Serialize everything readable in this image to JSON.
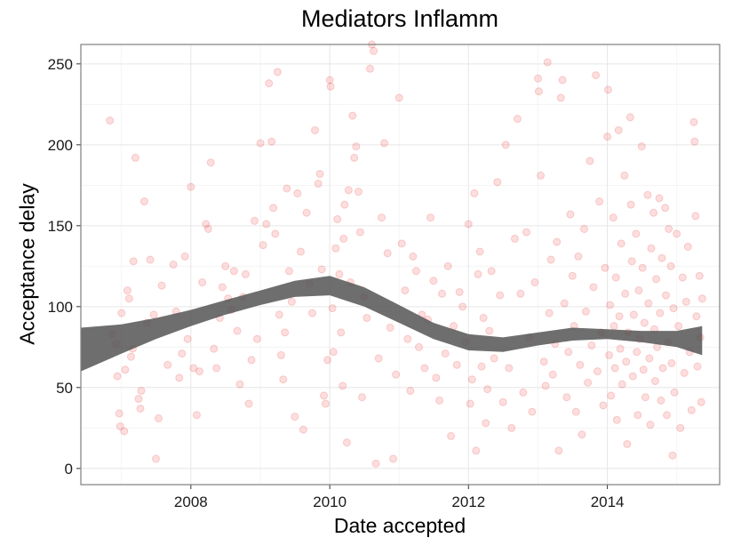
{
  "chart_data": {
    "type": "scatter",
    "title": "Mediators Inflamm",
    "xlabel": "Date accepted",
    "ylabel": "Acceptance delay",
    "xlim": [
      "2006-06-01",
      "2015-08-15"
    ],
    "ylim": [
      -10,
      262
    ],
    "x_ticks": [
      "2008",
      "2010",
      "2012",
      "2014"
    ],
    "y_ticks": [
      0,
      50,
      100,
      150,
      200,
      250
    ],
    "grid": true,
    "point_color": "#ee2222",
    "point_opacity": 0.15,
    "smooth_band_color": "#555555",
    "smooth": [
      {
        "x": "2006-06-01",
        "lo": 60,
        "hi": 87
      },
      {
        "x": "2007-01-01",
        "lo": 71,
        "hi": 89
      },
      {
        "x": "2007-07-01",
        "lo": 80,
        "hi": 93
      },
      {
        "x": "2008-01-01",
        "lo": 88,
        "hi": 98
      },
      {
        "x": "2008-07-01",
        "lo": 95,
        "hi": 104
      },
      {
        "x": "2009-01-01",
        "lo": 101,
        "hi": 110
      },
      {
        "x": "2009-07-01",
        "lo": 106,
        "hi": 116
      },
      {
        "x": "2010-01-01",
        "lo": 107,
        "hi": 119
      },
      {
        "x": "2010-07-01",
        "lo": 100,
        "hi": 112
      },
      {
        "x": "2011-01-01",
        "lo": 90,
        "hi": 101
      },
      {
        "x": "2011-07-01",
        "lo": 80,
        "hi": 90
      },
      {
        "x": "2012-01-01",
        "lo": 73,
        "hi": 83
      },
      {
        "x": "2012-07-01",
        "lo": 72,
        "hi": 81
      },
      {
        "x": "2013-01-01",
        "lo": 76,
        "hi": 84
      },
      {
        "x": "2013-07-01",
        "lo": 79,
        "hi": 87
      },
      {
        "x": "2014-01-01",
        "lo": 80,
        "hi": 86
      },
      {
        "x": "2014-07-01",
        "lo": 78,
        "hi": 85
      },
      {
        "x": "2015-01-01",
        "lo": 75,
        "hi": 85
      },
      {
        "x": "2015-05-15",
        "lo": 70,
        "hi": 88
      }
    ],
    "points": [
      {
        "x": "2006-11-01",
        "y": 215
      },
      {
        "x": "2006-11-15",
        "y": 83
      },
      {
        "x": "2006-12-01",
        "y": 77
      },
      {
        "x": "2006-12-10",
        "y": 57
      },
      {
        "x": "2007-01-01",
        "y": 96
      },
      {
        "x": "2006-12-20",
        "y": 34
      },
      {
        "x": "2006-12-25",
        "y": 26
      },
      {
        "x": "2007-01-15",
        "y": 23
      },
      {
        "x": "2007-01-20",
        "y": 61
      },
      {
        "x": "2007-02-01",
        "y": 110
      },
      {
        "x": "2007-02-10",
        "y": 105
      },
      {
        "x": "2007-02-20",
        "y": 69
      },
      {
        "x": "2007-03-01",
        "y": 74
      },
      {
        "x": "2007-03-05",
        "y": 128
      },
      {
        "x": "2007-03-15",
        "y": 192
      },
      {
        "x": "2007-04-01",
        "y": 43
      },
      {
        "x": "2007-04-10",
        "y": 37
      },
      {
        "x": "2007-04-15",
        "y": 48
      },
      {
        "x": "2007-05-01",
        "y": 165
      },
      {
        "x": "2007-05-15",
        "y": 90
      },
      {
        "x": "2007-06-01",
        "y": 129
      },
      {
        "x": "2007-06-20",
        "y": 95
      },
      {
        "x": "2007-07-01",
        "y": 6
      },
      {
        "x": "2007-07-15",
        "y": 31
      },
      {
        "x": "2007-08-01",
        "y": 113
      },
      {
        "x": "2007-09-01",
        "y": 64
      },
      {
        "x": "2007-10-01",
        "y": 126
      },
      {
        "x": "2007-10-15",
        "y": 97
      },
      {
        "x": "2007-11-01",
        "y": 56
      },
      {
        "x": "2007-11-15",
        "y": 71
      },
      {
        "x": "2007-12-01",
        "y": 131
      },
      {
        "x": "2007-12-15",
        "y": 80
      },
      {
        "x": "2008-01-01",
        "y": 174
      },
      {
        "x": "2008-01-15",
        "y": 62
      },
      {
        "x": "2008-02-01",
        "y": 33
      },
      {
        "x": "2008-02-15",
        "y": 60
      },
      {
        "x": "2008-03-01",
        "y": 115
      },
      {
        "x": "2008-03-20",
        "y": 151
      },
      {
        "x": "2008-04-01",
        "y": 148
      },
      {
        "x": "2008-04-15",
        "y": 189
      },
      {
        "x": "2008-05-01",
        "y": 74
      },
      {
        "x": "2008-05-15",
        "y": 62
      },
      {
        "x": "2008-06-01",
        "y": 93
      },
      {
        "x": "2008-06-15",
        "y": 112
      },
      {
        "x": "2008-07-01",
        "y": 125
      },
      {
        "x": "2008-07-15",
        "y": 105
      },
      {
        "x": "2008-08-01",
        "y": 98
      },
      {
        "x": "2008-08-15",
        "y": 122
      },
      {
        "x": "2008-09-01",
        "y": 85
      },
      {
        "x": "2008-09-15",
        "y": 52
      },
      {
        "x": "2008-10-01",
        "y": 106
      },
      {
        "x": "2008-10-15",
        "y": 120
      },
      {
        "x": "2008-11-01",
        "y": 40
      },
      {
        "x": "2008-11-15",
        "y": 67
      },
      {
        "x": "2008-12-01",
        "y": 153
      },
      {
        "x": "2008-12-15",
        "y": 80
      },
      {
        "x": "2009-01-01",
        "y": 201
      },
      {
        "x": "2009-01-15",
        "y": 138
      },
      {
        "x": "2009-02-01",
        "y": 151
      },
      {
        "x": "2009-02-15",
        "y": 238
      },
      {
        "x": "2009-03-01",
        "y": 202
      },
      {
        "x": "2009-03-10",
        "y": 161
      },
      {
        "x": "2009-03-20",
        "y": 145
      },
      {
        "x": "2009-04-01",
        "y": 245
      },
      {
        "x": "2009-04-10",
        "y": 95
      },
      {
        "x": "2009-04-20",
        "y": 70
      },
      {
        "x": "2009-05-01",
        "y": 55
      },
      {
        "x": "2009-05-10",
        "y": 84
      },
      {
        "x": "2009-05-20",
        "y": 173
      },
      {
        "x": "2009-06-01",
        "y": 122
      },
      {
        "x": "2009-06-15",
        "y": 103
      },
      {
        "x": "2009-07-01",
        "y": 32
      },
      {
        "x": "2009-07-15",
        "y": 170
      },
      {
        "x": "2009-08-01",
        "y": 134
      },
      {
        "x": "2009-08-15",
        "y": 24
      },
      {
        "x": "2009-09-01",
        "y": 158
      },
      {
        "x": "2009-09-15",
        "y": 114
      },
      {
        "x": "2009-10-01",
        "y": 96
      },
      {
        "x": "2009-10-15",
        "y": 209
      },
      {
        "x": "2009-11-01",
        "y": 176
      },
      {
        "x": "2009-11-10",
        "y": 182
      },
      {
        "x": "2009-11-20",
        "y": 123
      },
      {
        "x": "2009-12-01",
        "y": 45
      },
      {
        "x": "2009-12-10",
        "y": 40
      },
      {
        "x": "2009-12-20",
        "y": 67
      },
      {
        "x": "2010-01-01",
        "y": 240
      },
      {
        "x": "2010-01-05",
        "y": 236
      },
      {
        "x": "2010-01-15",
        "y": 99
      },
      {
        "x": "2010-01-20",
        "y": 72
      },
      {
        "x": "2010-02-01",
        "y": 136
      },
      {
        "x": "2010-02-10",
        "y": 154
      },
      {
        "x": "2010-02-20",
        "y": 120
      },
      {
        "x": "2010-03-01",
        "y": 84
      },
      {
        "x": "2010-03-10",
        "y": 51
      },
      {
        "x": "2010-03-15",
        "y": 142
      },
      {
        "x": "2010-03-20",
        "y": 163
      },
      {
        "x": "2010-04-01",
        "y": 16
      },
      {
        "x": "2010-04-10",
        "y": 172
      },
      {
        "x": "2010-04-20",
        "y": 115
      },
      {
        "x": "2010-05-01",
        "y": 218
      },
      {
        "x": "2010-05-10",
        "y": 192
      },
      {
        "x": "2010-05-20",
        "y": 199
      },
      {
        "x": "2010-06-01",
        "y": 171
      },
      {
        "x": "2010-06-10",
        "y": 146
      },
      {
        "x": "2010-06-20",
        "y": 44
      },
      {
        "x": "2010-07-01",
        "y": 106
      },
      {
        "x": "2010-07-15",
        "y": 93
      },
      {
        "x": "2010-08-01",
        "y": 247
      },
      {
        "x": "2010-08-10",
        "y": 262
      },
      {
        "x": "2010-08-20",
        "y": 258
      },
      {
        "x": "2010-09-01",
        "y": 3
      },
      {
        "x": "2010-09-15",
        "y": 68
      },
      {
        "x": "2010-10-01",
        "y": 155
      },
      {
        "x": "2010-10-15",
        "y": 201
      },
      {
        "x": "2010-11-01",
        "y": 133
      },
      {
        "x": "2010-11-15",
        "y": 87
      },
      {
        "x": "2010-12-01",
        "y": 6
      },
      {
        "x": "2010-12-15",
        "y": 58
      },
      {
        "x": "2011-01-01",
        "y": 229
      },
      {
        "x": "2011-01-15",
        "y": 139
      },
      {
        "x": "2011-02-01",
        "y": 110
      },
      {
        "x": "2011-02-15",
        "y": 80
      },
      {
        "x": "2011-03-01",
        "y": 48
      },
      {
        "x": "2011-03-15",
        "y": 131
      },
      {
        "x": "2011-04-01",
        "y": 122
      },
      {
        "x": "2011-04-15",
        "y": 75
      },
      {
        "x": "2011-05-01",
        "y": 95
      },
      {
        "x": "2011-05-15",
        "y": 62
      },
      {
        "x": "2011-06-01",
        "y": 92
      },
      {
        "x": "2011-06-15",
        "y": 155
      },
      {
        "x": "2011-07-01",
        "y": 116
      },
      {
        "x": "2011-07-15",
        "y": 56
      },
      {
        "x": "2011-08-01",
        "y": 42
      },
      {
        "x": "2011-08-15",
        "y": 108
      },
      {
        "x": "2011-09-01",
        "y": 71
      },
      {
        "x": "2011-09-15",
        "y": 125
      },
      {
        "x": "2011-10-01",
        "y": 20
      },
      {
        "x": "2011-10-15",
        "y": 88
      },
      {
        "x": "2011-11-01",
        "y": 64
      },
      {
        "x": "2011-11-15",
        "y": 109
      },
      {
        "x": "2011-12-01",
        "y": 100
      },
      {
        "x": "2011-12-15",
        "y": 78
      },
      {
        "x": "2012-01-01",
        "y": 151
      },
      {
        "x": "2012-01-10",
        "y": 40
      },
      {
        "x": "2012-01-20",
        "y": 55
      },
      {
        "x": "2012-02-01",
        "y": 170
      },
      {
        "x": "2012-02-10",
        "y": 11
      },
      {
        "x": "2012-02-20",
        "y": 120
      },
      {
        "x": "2012-03-01",
        "y": 134
      },
      {
        "x": "2012-03-10",
        "y": 63
      },
      {
        "x": "2012-03-20",
        "y": 93
      },
      {
        "x": "2012-04-01",
        "y": 28
      },
      {
        "x": "2012-04-10",
        "y": 49
      },
      {
        "x": "2012-04-20",
        "y": 85
      },
      {
        "x": "2012-05-01",
        "y": 122
      },
      {
        "x": "2012-05-15",
        "y": 68
      },
      {
        "x": "2012-06-01",
        "y": 177
      },
      {
        "x": "2012-06-15",
        "y": 107
      },
      {
        "x": "2012-07-01",
        "y": 41
      },
      {
        "x": "2012-07-15",
        "y": 200
      },
      {
        "x": "2012-08-01",
        "y": 62
      },
      {
        "x": "2012-08-15",
        "y": 25
      },
      {
        "x": "2012-09-01",
        "y": 142
      },
      {
        "x": "2012-09-15",
        "y": 216
      },
      {
        "x": "2012-10-01",
        "y": 108
      },
      {
        "x": "2012-10-15",
        "y": 47
      },
      {
        "x": "2012-11-01",
        "y": 146
      },
      {
        "x": "2012-11-15",
        "y": 81
      },
      {
        "x": "2012-12-01",
        "y": 35
      },
      {
        "x": "2012-12-15",
        "y": 115
      },
      {
        "x": "2013-01-01",
        "y": 241
      },
      {
        "x": "2013-01-05",
        "y": 233
      },
      {
        "x": "2013-01-15",
        "y": 181
      },
      {
        "x": "2013-02-01",
        "y": 66
      },
      {
        "x": "2013-02-10",
        "y": 51
      },
      {
        "x": "2013-02-20",
        "y": 251
      },
      {
        "x": "2013-03-01",
        "y": 96
      },
      {
        "x": "2013-03-10",
        "y": 129
      },
      {
        "x": "2013-03-20",
        "y": 58
      },
      {
        "x": "2013-04-01",
        "y": 77
      },
      {
        "x": "2013-04-10",
        "y": 140
      },
      {
        "x": "2013-04-20",
        "y": 11
      },
      {
        "x": "2013-05-01",
        "y": 229
      },
      {
        "x": "2013-05-10",
        "y": 240
      },
      {
        "x": "2013-05-20",
        "y": 102
      },
      {
        "x": "2013-06-01",
        "y": 44
      },
      {
        "x": "2013-06-10",
        "y": 72
      },
      {
        "x": "2013-06-20",
        "y": 157
      },
      {
        "x": "2013-07-01",
        "y": 119
      },
      {
        "x": "2013-07-10",
        "y": 88
      },
      {
        "x": "2013-07-20",
        "y": 35
      },
      {
        "x": "2013-08-01",
        "y": 131
      },
      {
        "x": "2013-08-10",
        "y": 64
      },
      {
        "x": "2013-08-20",
        "y": 21
      },
      {
        "x": "2013-09-01",
        "y": 148
      },
      {
        "x": "2013-09-10",
        "y": 97
      },
      {
        "x": "2013-09-20",
        "y": 53
      },
      {
        "x": "2013-10-01",
        "y": 190
      },
      {
        "x": "2013-10-10",
        "y": 76
      },
      {
        "x": "2013-10-20",
        "y": 112
      },
      {
        "x": "2013-11-01",
        "y": 243
      },
      {
        "x": "2013-11-10",
        "y": 60
      },
      {
        "x": "2013-11-20",
        "y": 165
      },
      {
        "x": "2013-12-01",
        "y": 84
      },
      {
        "x": "2013-12-10",
        "y": 39
      },
      {
        "x": "2013-12-20",
        "y": 124
      },
      {
        "x": "2014-01-01",
        "y": 205
      },
      {
        "x": "2014-01-05",
        "y": 234
      },
      {
        "x": "2014-01-10",
        "y": 70
      },
      {
        "x": "2014-01-15",
        "y": 101
      },
      {
        "x": "2014-01-20",
        "y": 45
      },
      {
        "x": "2014-02-01",
        "y": 155
      },
      {
        "x": "2014-02-05",
        "y": 88
      },
      {
        "x": "2014-02-10",
        "y": 62
      },
      {
        "x": "2014-02-15",
        "y": 118
      },
      {
        "x": "2014-02-20",
        "y": 30
      },
      {
        "x": "2014-03-01",
        "y": 209
      },
      {
        "x": "2014-03-05",
        "y": 94
      },
      {
        "x": "2014-03-10",
        "y": 74
      },
      {
        "x": "2014-03-15",
        "y": 139
      },
      {
        "x": "2014-03-20",
        "y": 52
      },
      {
        "x": "2014-04-01",
        "y": 181
      },
      {
        "x": "2014-04-05",
        "y": 108
      },
      {
        "x": "2014-04-10",
        "y": 66
      },
      {
        "x": "2014-04-15",
        "y": 15
      },
      {
        "x": "2014-04-20",
        "y": 84
      },
      {
        "x": "2014-05-01",
        "y": 217
      },
      {
        "x": "2014-05-05",
        "y": 163
      },
      {
        "x": "2014-05-10",
        "y": 128
      },
      {
        "x": "2014-05-15",
        "y": 57
      },
      {
        "x": "2014-05-20",
        "y": 95
      },
      {
        "x": "2014-06-01",
        "y": 145
      },
      {
        "x": "2014-06-05",
        "y": 72
      },
      {
        "x": "2014-06-10",
        "y": 33
      },
      {
        "x": "2014-06-15",
        "y": 110
      },
      {
        "x": "2014-06-20",
        "y": 80
      },
      {
        "x": "2014-07-01",
        "y": 199
      },
      {
        "x": "2014-07-05",
        "y": 124
      },
      {
        "x": "2014-07-10",
        "y": 61
      },
      {
        "x": "2014-07-15",
        "y": 90
      },
      {
        "x": "2014-07-20",
        "y": 44
      },
      {
        "x": "2014-08-01",
        "y": 169
      },
      {
        "x": "2014-08-05",
        "y": 102
      },
      {
        "x": "2014-08-10",
        "y": 68
      },
      {
        "x": "2014-08-15",
        "y": 27
      },
      {
        "x": "2014-08-20",
        "y": 136
      },
      {
        "x": "2014-09-01",
        "y": 158
      },
      {
        "x": "2014-09-05",
        "y": 86
      },
      {
        "x": "2014-09-10",
        "y": 54
      },
      {
        "x": "2014-09-15",
        "y": 117
      },
      {
        "x": "2014-09-20",
        "y": 75
      },
      {
        "x": "2014-10-01",
        "y": 167
      },
      {
        "x": "2014-10-05",
        "y": 96
      },
      {
        "x": "2014-10-10",
        "y": 42
      },
      {
        "x": "2014-10-15",
        "y": 130
      },
      {
        "x": "2014-10-20",
        "y": 62
      },
      {
        "x": "2014-11-01",
        "y": 161
      },
      {
        "x": "2014-11-05",
        "y": 107
      },
      {
        "x": "2014-11-10",
        "y": 33
      },
      {
        "x": "2014-11-15",
        "y": 78
      },
      {
        "x": "2014-11-20",
        "y": 148
      },
      {
        "x": "2014-12-01",
        "y": 125
      },
      {
        "x": "2014-12-05",
        "y": 65
      },
      {
        "x": "2014-12-10",
        "y": 8
      },
      {
        "x": "2014-12-15",
        "y": 99
      },
      {
        "x": "2014-12-20",
        "y": 47
      },
      {
        "x": "2015-01-01",
        "y": 145
      },
      {
        "x": "2015-01-10",
        "y": 88
      },
      {
        "x": "2015-01-20",
        "y": 25
      },
      {
        "x": "2015-02-01",
        "y": 118
      },
      {
        "x": "2015-02-10",
        "y": 59
      },
      {
        "x": "2015-02-20",
        "y": 103
      },
      {
        "x": "2015-03-01",
        "y": 137
      },
      {
        "x": "2015-03-10",
        "y": 72
      },
      {
        "x": "2015-03-20",
        "y": 36
      },
      {
        "x": "2015-04-01",
        "y": 214
      },
      {
        "x": "2015-04-05",
        "y": 202
      },
      {
        "x": "2015-04-10",
        "y": 156
      },
      {
        "x": "2015-04-15",
        "y": 94
      },
      {
        "x": "2015-04-20",
        "y": 63
      },
      {
        "x": "2015-05-01",
        "y": 119
      },
      {
        "x": "2015-05-05",
        "y": 81
      },
      {
        "x": "2015-05-10",
        "y": 41
      },
      {
        "x": "2015-05-15",
        "y": 105
      }
    ]
  }
}
